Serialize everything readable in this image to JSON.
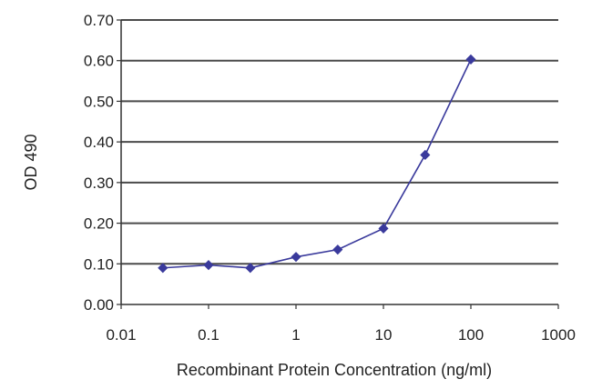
{
  "chart_data": {
    "type": "line",
    "title": "",
    "xlabel": "Recombinant Protein Concentration (ng/ml)",
    "ylabel": "OD 490",
    "xscale": "log",
    "xlim": [
      0.01,
      1000
    ],
    "ylim": [
      0,
      0.7
    ],
    "xticks": [
      "0.01",
      "0.1",
      "1",
      "10",
      "100",
      "1000"
    ],
    "yticks": [
      "0.00",
      "0.10",
      "0.20",
      "0.30",
      "0.40",
      "0.50",
      "0.60",
      "0.70"
    ],
    "grid": "horizontal",
    "legend": "none",
    "series": [
      {
        "x": [
          0.03,
          0.1,
          0.3,
          1,
          3,
          10,
          30,
          100
        ],
        "values": [
          0.09,
          0.097,
          0.09,
          0.117,
          0.135,
          0.187,
          0.368,
          0.603
        ],
        "color": "#3a3a9c",
        "marker": "diamond"
      }
    ]
  },
  "colors": {
    "plot_background": "#ffffff",
    "grid": "#4a4a4a",
    "axis": "#333333",
    "series": "#3a3a9c"
  }
}
